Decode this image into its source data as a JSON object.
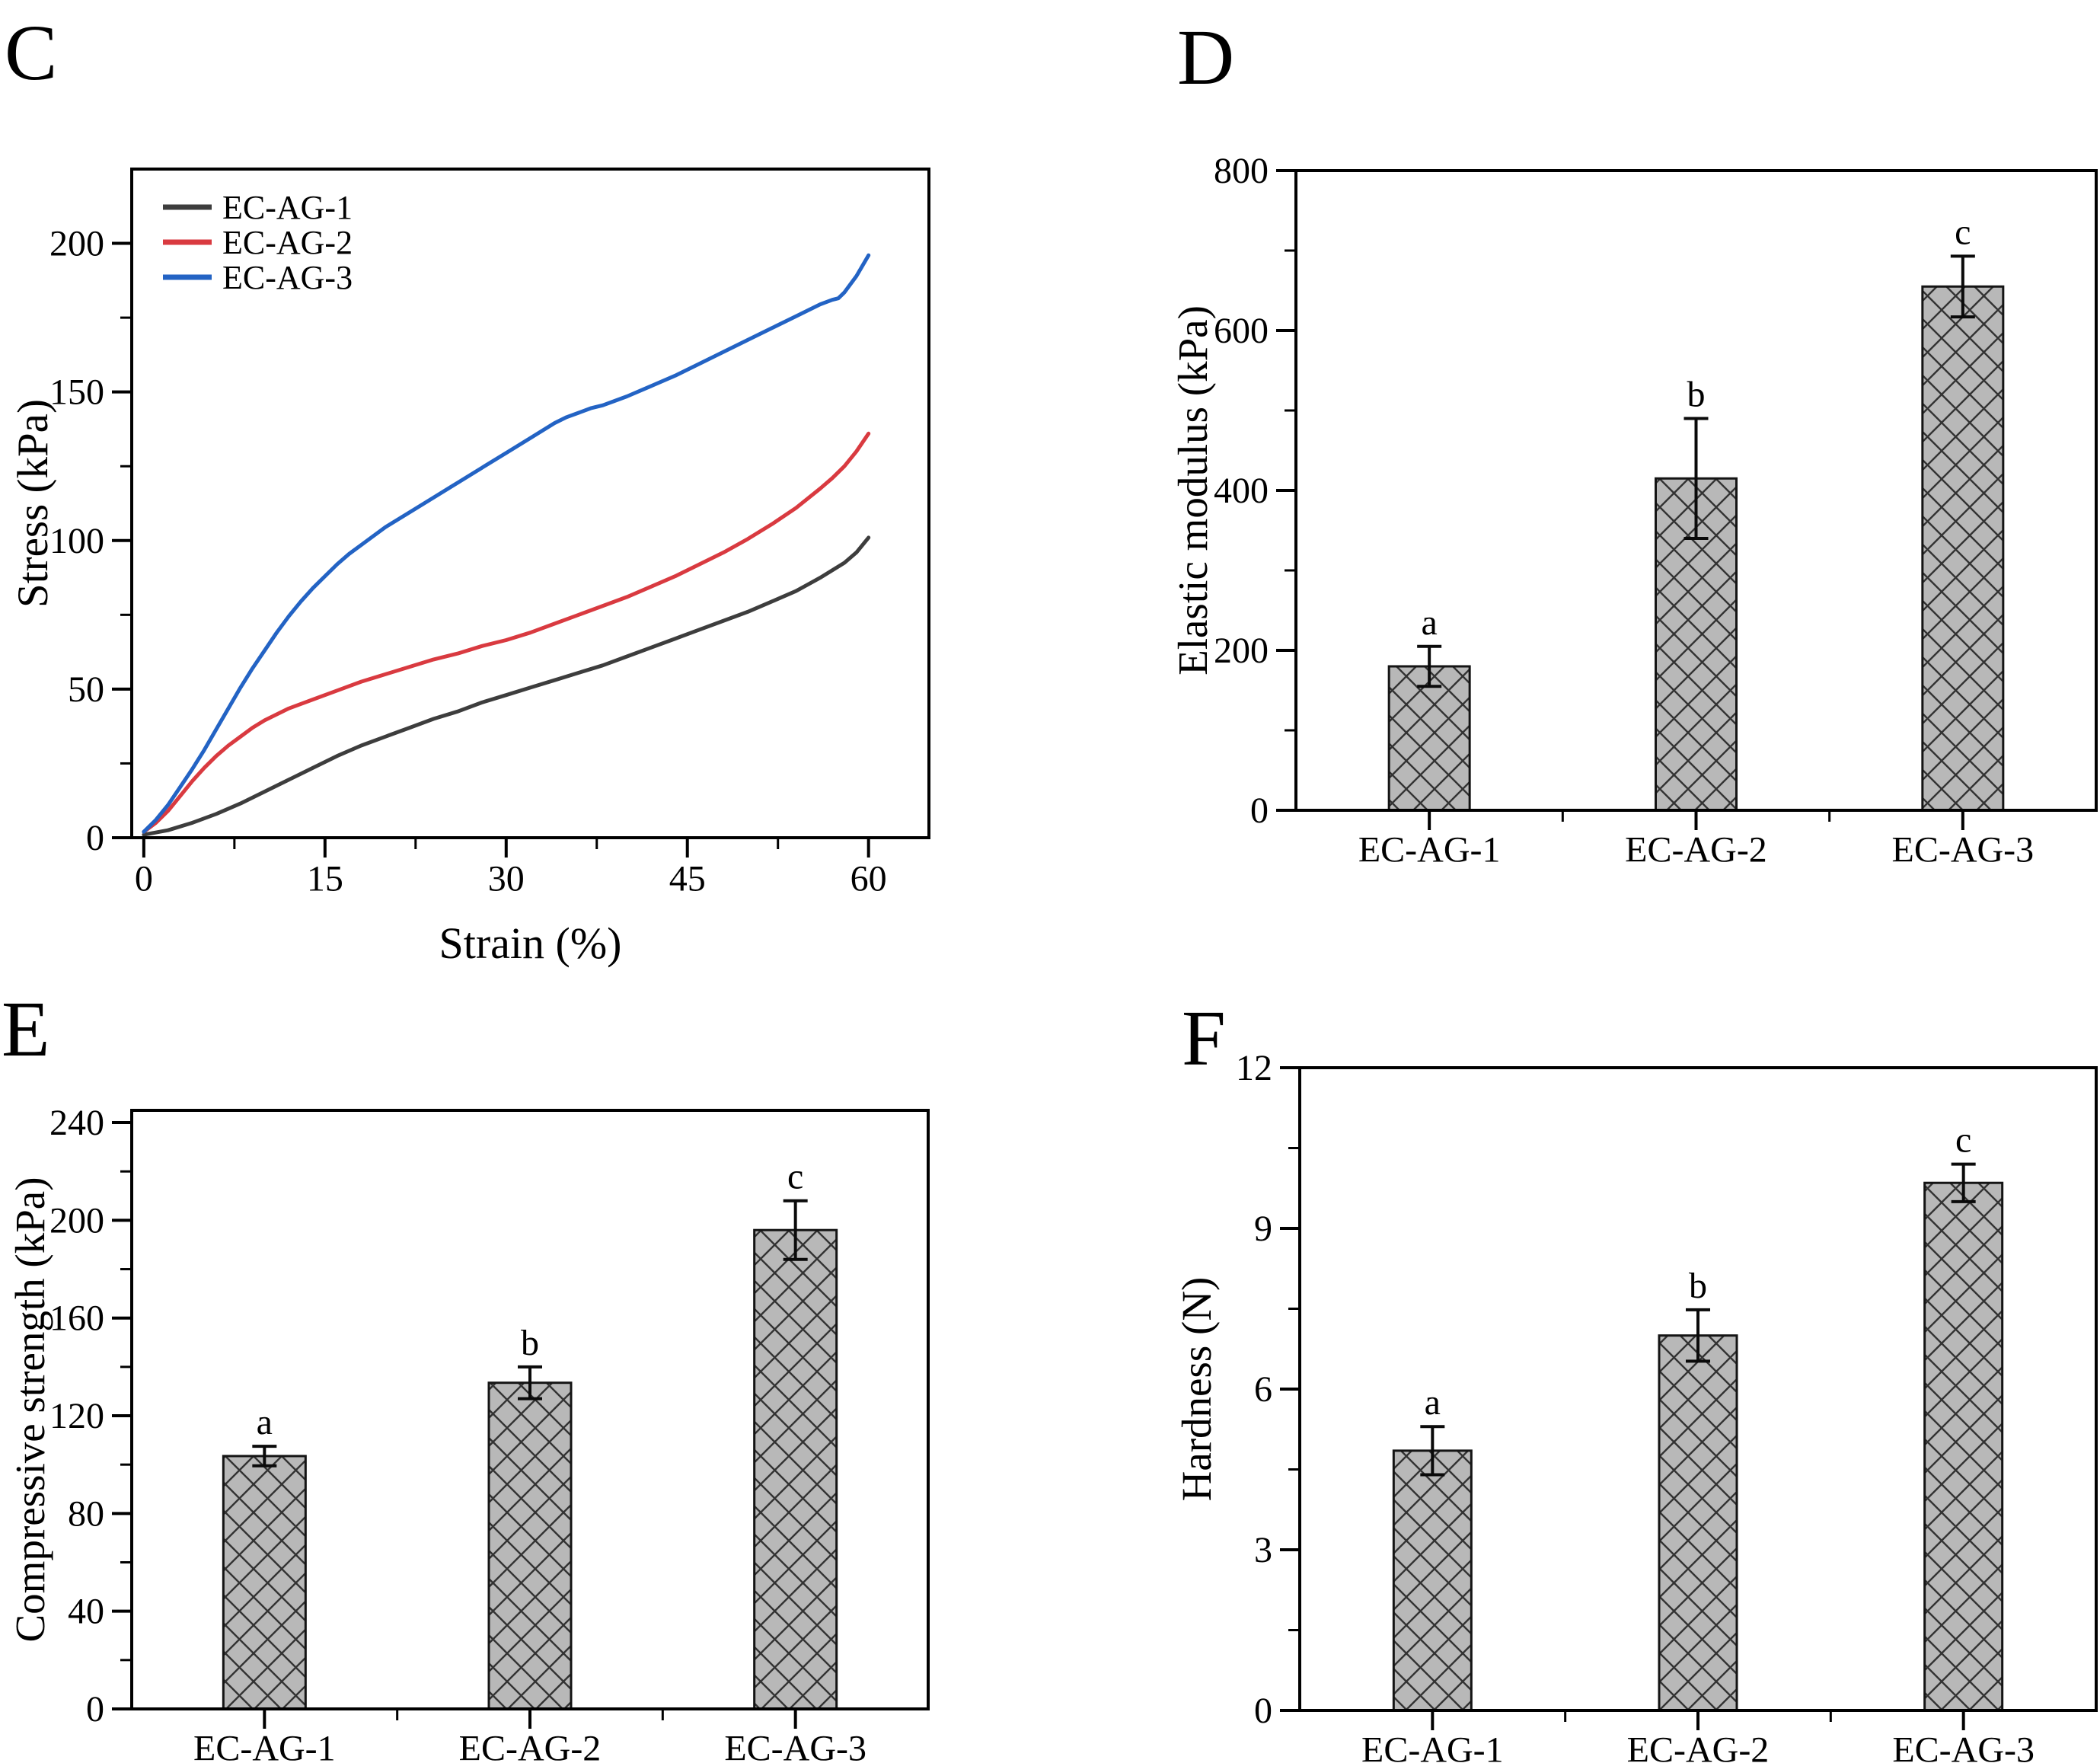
{
  "figure": {
    "background_color": "#ffffff",
    "text_color": "#000000",
    "axis_color": "#000000"
  },
  "panels": {
    "c": {
      "letter": "C"
    },
    "d": {
      "letter": "D"
    },
    "e": {
      "letter": "E"
    },
    "f": {
      "letter": "F"
    }
  },
  "chart_data": [
    {
      "panel": "c",
      "type": "line",
      "title": "",
      "xlabel": "Strain (%)",
      "ylabel": "Stress (kPa)",
      "xlim": [
        -1,
        65
      ],
      "ylim": [
        0,
        225
      ],
      "grid": false,
      "xticks": {
        "major": [
          0,
          15,
          30,
          45,
          60
        ],
        "minor": [
          7.5,
          22.5,
          37.5,
          52.5
        ],
        "labels": [
          "0",
          "15",
          "30",
          "45",
          "60"
        ]
      },
      "yticks": {
        "major": [
          0,
          50,
          100,
          150,
          200
        ],
        "minor": [
          25,
          75,
          125,
          175
        ],
        "labels": [
          "0",
          "50",
          "100",
          "150",
          "200"
        ]
      },
      "legend": {
        "position": "top-left",
        "entries": [
          "EC-AG-1",
          "EC-AG-2",
          "EC-AG-3"
        ]
      },
      "series": [
        {
          "name": "EC-AG-1",
          "color": "#3d3d3d",
          "points": [
            [
              0,
              1
            ],
            [
              2,
              2.5
            ],
            [
              4,
              5
            ],
            [
              6,
              8
            ],
            [
              8,
              11.5
            ],
            [
              10,
              15.5
            ],
            [
              12,
              19.5
            ],
            [
              14,
              23.5
            ],
            [
              16,
              27.5
            ],
            [
              18,
              31
            ],
            [
              20,
              34
            ],
            [
              22,
              37
            ],
            [
              24,
              40
            ],
            [
              26,
              42.5
            ],
            [
              28,
              45.5
            ],
            [
              30,
              48
            ],
            [
              32,
              50.5
            ],
            [
              34,
              53
            ],
            [
              36,
              55.5
            ],
            [
              38,
              58
            ],
            [
              40,
              61
            ],
            [
              42,
              64
            ],
            [
              44,
              67
            ],
            [
              46,
              70
            ],
            [
              48,
              73
            ],
            [
              50,
              76
            ],
            [
              52,
              79.5
            ],
            [
              54,
              83
            ],
            [
              56,
              87.5
            ],
            [
              58,
              92.5
            ],
            [
              59,
              96
            ],
            [
              60,
              101
            ]
          ]
        },
        {
          "name": "EC-AG-2",
          "color": "#d93a40",
          "points": [
            [
              0,
              2
            ],
            [
              1,
              5
            ],
            [
              2,
              9
            ],
            [
              3,
              14
            ],
            [
              4,
              19
            ],
            [
              5,
              23.5
            ],
            [
              6,
              27.5
            ],
            [
              7,
              31
            ],
            [
              8,
              34
            ],
            [
              9,
              37
            ],
            [
              10,
              39.5
            ],
            [
              12,
              43.5
            ],
            [
              14,
              46.5
            ],
            [
              16,
              49.5
            ],
            [
              18,
              52.5
            ],
            [
              20,
              55
            ],
            [
              22,
              57.5
            ],
            [
              24,
              60
            ],
            [
              26,
              62
            ],
            [
              28,
              64.5
            ],
            [
              30,
              66.5
            ],
            [
              32,
              69
            ],
            [
              34,
              72
            ],
            [
              36,
              75
            ],
            [
              38,
              78
            ],
            [
              40,
              81
            ],
            [
              42,
              84.5
            ],
            [
              44,
              88
            ],
            [
              46,
              92
            ],
            [
              48,
              96
            ],
            [
              50,
              100.5
            ],
            [
              52,
              105.5
            ],
            [
              54,
              111
            ],
            [
              56,
              117.5
            ],
            [
              57,
              121
            ],
            [
              58,
              125
            ],
            [
              59,
              130
            ],
            [
              60,
              136
            ]
          ]
        },
        {
          "name": "EC-AG-3",
          "color": "#2363c4",
          "points": [
            [
              0,
              2
            ],
            [
              1,
              6
            ],
            [
              2,
              11
            ],
            [
              3,
              17
            ],
            [
              4,
              23
            ],
            [
              5,
              29.5
            ],
            [
              6,
              36.5
            ],
            [
              7,
              43.5
            ],
            [
              8,
              50.5
            ],
            [
              9,
              57
            ],
            [
              10,
              63
            ],
            [
              11,
              69
            ],
            [
              12,
              74.5
            ],
            [
              13,
              79.5
            ],
            [
              14,
              84
            ],
            [
              15,
              88
            ],
            [
              16,
              92
            ],
            [
              17,
              95.5
            ],
            [
              18,
              98.5
            ],
            [
              19,
              101.5
            ],
            [
              20,
              104.5
            ],
            [
              22,
              109.5
            ],
            [
              24,
              114.5
            ],
            [
              26,
              119.5
            ],
            [
              28,
              124.5
            ],
            [
              30,
              129.5
            ],
            [
              32,
              134.5
            ],
            [
              34,
              139.5
            ],
            [
              35,
              141.5
            ],
            [
              36,
              143
            ],
            [
              37,
              144.5
            ],
            [
              38,
              145.5
            ],
            [
              39,
              147
            ],
            [
              40,
              148.5
            ],
            [
              42,
              152
            ],
            [
              44,
              155.5
            ],
            [
              46,
              159.5
            ],
            [
              48,
              163.5
            ],
            [
              50,
              167.5
            ],
            [
              52,
              171.5
            ],
            [
              54,
              175.5
            ],
            [
              56,
              179.5
            ],
            [
              57,
              181
            ],
            [
              57.5,
              181.5
            ],
            [
              58,
              183.5
            ],
            [
              59,
              189
            ],
            [
              60,
              196
            ]
          ]
        }
      ]
    },
    {
      "panel": "d",
      "type": "bar",
      "title": "",
      "xlabel": "",
      "ylabel": "Elastic modulus (kPa)",
      "categories": [
        "EC-AG-1",
        "EC-AG-2",
        "EC-AG-3"
      ],
      "values": [
        180,
        415,
        655
      ],
      "errors": [
        25,
        75,
        38
      ],
      "sig_letters": [
        "a",
        "b",
        "c"
      ],
      "ylim": [
        0,
        800
      ],
      "yticks": {
        "major": [
          0,
          200,
          400,
          600,
          800
        ],
        "minor": [
          100,
          300,
          500,
          700
        ],
        "labels": [
          "0",
          "200",
          "400",
          "600",
          "800"
        ]
      },
      "bar": {
        "fill": "#b8b8b8",
        "hatch": "diagonal-cross",
        "hatch_color": "#333333",
        "border_color": "#141414"
      }
    },
    {
      "panel": "e",
      "type": "bar",
      "title": "",
      "xlabel": "",
      "ylabel": "Compressive strength (kPa)",
      "categories": [
        "EC-AG-1",
        "EC-AG-2",
        "EC-AG-3"
      ],
      "values": [
        103.5,
        133.5,
        196
      ],
      "errors": [
        4,
        6.5,
        12
      ],
      "sig_letters": [
        "a",
        "b",
        "c"
      ],
      "ylim": [
        0,
        245
      ],
      "yticks": {
        "major": [
          0,
          40,
          80,
          120,
          160,
          200,
          240
        ],
        "minor": [
          20,
          60,
          100,
          140,
          180,
          220
        ],
        "labels": [
          "0",
          "40",
          "80",
          "120",
          "160",
          "200",
          "240"
        ]
      },
      "bar": {
        "fill": "#b8b8b8",
        "hatch": "diagonal-cross",
        "hatch_color": "#333333",
        "border_color": "#141414"
      }
    },
    {
      "panel": "f",
      "type": "bar",
      "title": "",
      "xlabel": "",
      "ylabel": "Hardness (N)",
      "categories": [
        "EC-AG-1",
        "EC-AG-2",
        "EC-AG-3"
      ],
      "values": [
        4.85,
        7.0,
        9.85
      ],
      "errors": [
        0.45,
        0.48,
        0.35
      ],
      "sig_letters": [
        "a",
        "b",
        "c"
      ],
      "ylim": [
        0,
        12
      ],
      "yticks": {
        "major": [
          0,
          3,
          6,
          9,
          12
        ],
        "minor": [
          1.5,
          4.5,
          7.5,
          10.5
        ],
        "labels": [
          "0",
          "3",
          "6",
          "9",
          "12"
        ]
      },
      "bar": {
        "fill": "#b8b8b8",
        "hatch": "diagonal-cross",
        "hatch_color": "#333333",
        "border_color": "#141414"
      }
    }
  ]
}
